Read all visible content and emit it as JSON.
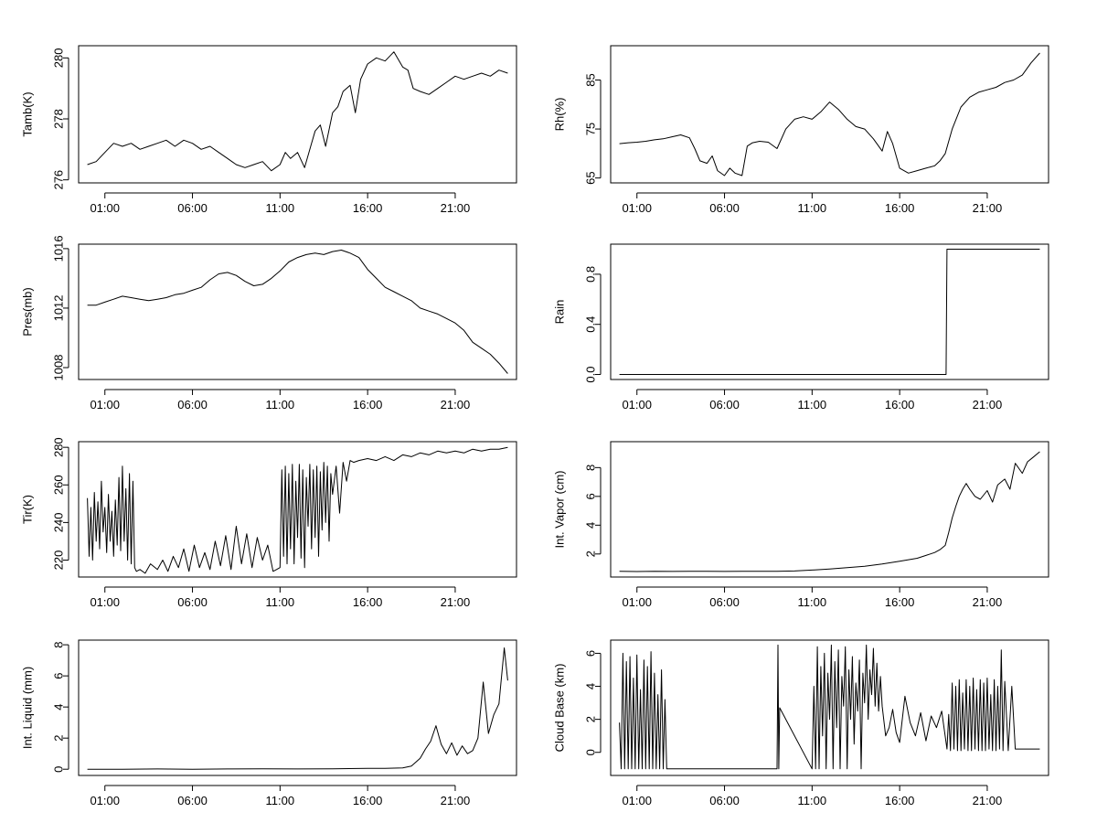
{
  "chart_data": [
    {
      "type": "line",
      "ylabel": "Tamb(K)",
      "xlim": [
        -0.5,
        24.5
      ],
      "ylim": [
        275.9,
        280.4
      ],
      "xticks": [
        1,
        6,
        11,
        16,
        21
      ],
      "xtick_labels": [
        "01:00",
        "06:00",
        "11:00",
        "16:00",
        "21:00"
      ],
      "yticks": [
        276,
        278,
        280
      ],
      "ytick_labels": [
        "276",
        "278",
        "280"
      ],
      "x": [
        0,
        0.5,
        1,
        1.5,
        2,
        2.5,
        3,
        3.5,
        4,
        4.5,
        5,
        5.5,
        6,
        6.5,
        7,
        7.5,
        8,
        8.5,
        9,
        9.5,
        10,
        10.5,
        11,
        11.3,
        11.6,
        12,
        12.4,
        12.8,
        13,
        13.3,
        13.6,
        14,
        14.3,
        14.6,
        15,
        15.3,
        15.6,
        16,
        16.5,
        17,
        17.5,
        18,
        18.3,
        18.6,
        19,
        19.5,
        20,
        20.5,
        21,
        21.5,
        22,
        22.5,
        23,
        23.5,
        24
      ],
      "y": [
        276.5,
        276.6,
        276.9,
        277.2,
        277.1,
        277.2,
        277.0,
        277.1,
        277.2,
        277.3,
        277.1,
        277.3,
        277.2,
        277.0,
        277.1,
        276.9,
        276.7,
        276.5,
        276.4,
        276.5,
        276.6,
        276.3,
        276.5,
        276.9,
        276.7,
        276.9,
        276.4,
        277.2,
        277.6,
        277.8,
        277.1,
        278.2,
        278.4,
        278.9,
        279.1,
        278.2,
        279.3,
        279.8,
        280.0,
        279.9,
        280.2,
        279.7,
        279.6,
        279.0,
        278.9,
        278.8,
        279.0,
        279.2,
        279.4,
        279.3,
        279.4,
        279.5,
        279.4,
        279.6,
        279.5
      ]
    },
    {
      "type": "line",
      "ylabel": "Rh(%)",
      "xlim": [
        -0.5,
        24.5
      ],
      "ylim": [
        64,
        92
      ],
      "xticks": [
        1,
        6,
        11,
        16,
        21
      ],
      "xtick_labels": [
        "01:00",
        "06:00",
        "11:00",
        "16:00",
        "21:00"
      ],
      "yticks": [
        65,
        75,
        85
      ],
      "ytick_labels": [
        "65",
        "75",
        "85"
      ],
      "x": [
        0,
        0.5,
        1,
        1.5,
        2,
        2.5,
        3,
        3.5,
        4,
        4.3,
        4.6,
        5,
        5.3,
        5.6,
        6,
        6.3,
        6.6,
        7,
        7.3,
        7.6,
        8,
        8.5,
        9,
        9.5,
        10,
        10.5,
        11,
        11.5,
        12,
        12.5,
        13,
        13.5,
        14,
        14.5,
        15,
        15.3,
        15.6,
        16,
        16.5,
        17,
        17.5,
        18,
        18.3,
        18.6,
        19,
        19.5,
        20,
        20.5,
        21,
        21.5,
        22,
        22.5,
        23,
        23.5,
        24
      ],
      "y": [
        72,
        72.2,
        72.3,
        72.5,
        72.8,
        73.0,
        73.4,
        73.8,
        73.2,
        71.0,
        68.5,
        68.0,
        69.5,
        66.5,
        65.5,
        67.0,
        66.0,
        65.5,
        71.5,
        72.2,
        72.5,
        72.3,
        71.0,
        75.0,
        77.0,
        77.5,
        77.0,
        78.5,
        80.5,
        79.0,
        77.0,
        75.5,
        75.0,
        73.0,
        70.5,
        74.5,
        72.0,
        67.0,
        66.0,
        66.5,
        67.0,
        67.5,
        68.5,
        70.0,
        75.0,
        79.5,
        81.5,
        82.5,
        83.0,
        83.5,
        84.5,
        85.0,
        86.0,
        88.5,
        90.5
      ]
    },
    {
      "type": "line",
      "ylabel": "Pres(mb)",
      "xlim": [
        -0.5,
        24.5
      ],
      "ylim": [
        1007.2,
        1016.3
      ],
      "xticks": [
        1,
        6,
        11,
        16,
        21
      ],
      "xtick_labels": [
        "01:00",
        "06:00",
        "11:00",
        "16:00",
        "21:00"
      ],
      "yticks": [
        1008,
        1012,
        1016
      ],
      "ytick_labels": [
        "1008",
        "1012",
        "1016"
      ],
      "x": [
        0,
        0.5,
        1,
        1.5,
        2,
        2.5,
        3,
        3.5,
        4,
        4.5,
        5,
        5.5,
        6,
        6.5,
        7,
        7.5,
        8,
        8.5,
        9,
        9.5,
        10,
        10.5,
        11,
        11.5,
        12,
        12.5,
        13,
        13.5,
        14,
        14.5,
        15,
        15.5,
        16,
        16.5,
        17,
        17.5,
        18,
        18.5,
        19,
        19.5,
        20,
        20.5,
        21,
        21.5,
        22,
        22.5,
        23,
        23.5,
        24
      ],
      "y": [
        1012.2,
        1012.2,
        1012.4,
        1012.6,
        1012.8,
        1012.7,
        1012.6,
        1012.5,
        1012.6,
        1012.7,
        1012.9,
        1013.0,
        1013.2,
        1013.4,
        1013.9,
        1014.3,
        1014.4,
        1014.2,
        1013.8,
        1013.5,
        1013.6,
        1014.0,
        1014.5,
        1015.1,
        1015.4,
        1015.6,
        1015.7,
        1015.6,
        1015.8,
        1015.9,
        1015.7,
        1015.4,
        1014.6,
        1014.0,
        1013.4,
        1013.1,
        1012.8,
        1012.5,
        1012.0,
        1011.8,
        1011.6,
        1011.3,
        1011.0,
        1010.5,
        1009.7,
        1009.3,
        1008.9,
        1008.3,
        1007.6
      ]
    },
    {
      "type": "line",
      "ylabel": "Rain",
      "xlim": [
        -0.5,
        24.5
      ],
      "ylim": [
        -0.04,
        1.04
      ],
      "xticks": [
        1,
        6,
        11,
        16,
        21
      ],
      "xtick_labels": [
        "01:00",
        "06:00",
        "11:00",
        "16:00",
        "21:00"
      ],
      "yticks": [
        0.0,
        0.4,
        0.8
      ],
      "ytick_labels": [
        "0.0",
        "0.4",
        "0.8"
      ],
      "x": [
        0,
        18.65,
        18.7,
        24
      ],
      "y": [
        0,
        0,
        1,
        1
      ]
    },
    {
      "type": "line",
      "ylabel": "Tir(K)",
      "xlim": [
        -0.5,
        24.5
      ],
      "ylim": [
        211,
        283
      ],
      "xticks": [
        1,
        6,
        11,
        16,
        21
      ],
      "xtick_labels": [
        "01:00",
        "06:00",
        "11:00",
        "16:00",
        "21:00"
      ],
      "yticks": [
        220,
        240,
        260,
        280
      ],
      "ytick_labels": [
        "220",
        "240",
        "260",
        "280"
      ],
      "x": [
        0,
        0.1,
        0.2,
        0.3,
        0.4,
        0.5,
        0.6,
        0.7,
        0.8,
        0.9,
        1.0,
        1.1,
        1.2,
        1.3,
        1.4,
        1.5,
        1.6,
        1.7,
        1.8,
        1.9,
        2.0,
        2.1,
        2.2,
        2.3,
        2.4,
        2.5,
        2.6,
        2.7,
        2.8,
        3.0,
        3.3,
        3.6,
        4.0,
        4.3,
        4.6,
        4.9,
        5.2,
        5.5,
        5.8,
        6.1,
        6.4,
        6.7,
        7.0,
        7.3,
        7.6,
        7.9,
        8.2,
        8.5,
        8.8,
        9.1,
        9.4,
        9.7,
        10.0,
        10.3,
        10.6,
        10.8,
        11.0,
        11.1,
        11.2,
        11.3,
        11.4,
        11.5,
        11.6,
        11.7,
        11.8,
        11.9,
        12.0,
        12.1,
        12.2,
        12.3,
        12.4,
        12.5,
        12.6,
        12.7,
        12.8,
        12.9,
        13.0,
        13.1,
        13.2,
        13.3,
        13.4,
        13.5,
        13.6,
        13.7,
        13.8,
        13.9,
        14.0,
        14.2,
        14.4,
        14.6,
        14.8,
        15.0,
        15.2,
        15.5,
        16.0,
        16.5,
        17.0,
        17.5,
        18.0,
        18.5,
        19.0,
        19.5,
        20.0,
        20.5,
        21.0,
        21.5,
        22.0,
        22.5,
        23.0,
        23.5,
        24.0
      ],
      "y": [
        253,
        222,
        248,
        220,
        256,
        230,
        251,
        226,
        262,
        235,
        248,
        224,
        255,
        230,
        246,
        222,
        252,
        228,
        264,
        225,
        270,
        230,
        258,
        220,
        266,
        218,
        262,
        216,
        214,
        215,
        213,
        218,
        215,
        220,
        214,
        222,
        216,
        226,
        214,
        228,
        216,
        224,
        215,
        230,
        217,
        233,
        215,
        238,
        218,
        234,
        216,
        232,
        220,
        228,
        214,
        215,
        216,
        268,
        222,
        270,
        218,
        266,
        226,
        271,
        218,
        262,
        232,
        271,
        221,
        268,
        216,
        264,
        238,
        271,
        226,
        268,
        232,
        270,
        222,
        267,
        236,
        272,
        240,
        270,
        230,
        266,
        255,
        270,
        245,
        272,
        262,
        273,
        272,
        273,
        274,
        273,
        275,
        273,
        276,
        275,
        277,
        276,
        278,
        277,
        278,
        277,
        279,
        278,
        279,
        279,
        280
      ]
    },
    {
      "type": "line",
      "ylabel": "Int. Vapor (cm)",
      "xlim": [
        -0.5,
        24.5
      ],
      "ylim": [
        0.4,
        9.8
      ],
      "xticks": [
        1,
        6,
        11,
        16,
        21
      ],
      "xtick_labels": [
        "01:00",
        "06:00",
        "11:00",
        "16:00",
        "21:00"
      ],
      "yticks": [
        2,
        4,
        6,
        8
      ],
      "ytick_labels": [
        "2",
        "4",
        "6",
        "8"
      ],
      "x": [
        0,
        1,
        2,
        3,
        4,
        5,
        6,
        7,
        8,
        9,
        10,
        11,
        12,
        13,
        14,
        15,
        16,
        17,
        17.5,
        18,
        18.3,
        18.6,
        18.8,
        19.0,
        19.2,
        19.4,
        19.6,
        19.8,
        20.0,
        20.3,
        20.6,
        21.0,
        21.3,
        21.6,
        22.0,
        22.3,
        22.6,
        23.0,
        23.3,
        23.6,
        24.0
      ],
      "y": [
        0.8,
        0.78,
        0.8,
        0.79,
        0.8,
        0.8,
        0.79,
        0.8,
        0.8,
        0.8,
        0.82,
        0.88,
        0.95,
        1.05,
        1.15,
        1.3,
        1.5,
        1.7,
        1.9,
        2.1,
        2.3,
        2.6,
        3.5,
        4.5,
        5.3,
        6.0,
        6.5,
        6.9,
        6.5,
        6.0,
        5.8,
        6.4,
        5.6,
        6.8,
        7.2,
        6.5,
        8.3,
        7.6,
        8.4,
        8.7,
        9.1
      ]
    },
    {
      "type": "line",
      "ylabel": "Int. Liquid (mm)",
      "xlim": [
        -0.5,
        24.5
      ],
      "ylim": [
        -0.4,
        8.3
      ],
      "xticks": [
        1,
        6,
        11,
        16,
        21
      ],
      "xtick_labels": [
        "01:00",
        "06:00",
        "11:00",
        "16:00",
        "21:00"
      ],
      "yticks": [
        0,
        2,
        4,
        6,
        8
      ],
      "ytick_labels": [
        "0",
        "2",
        "4",
        "6",
        "8"
      ],
      "x": [
        0,
        2,
        4,
        6,
        8,
        10,
        12,
        14,
        16,
        17,
        18,
        18.5,
        19,
        19.3,
        19.6,
        19.9,
        20.2,
        20.5,
        20.8,
        21.1,
        21.4,
        21.7,
        22.0,
        22.3,
        22.6,
        22.9,
        23.2,
        23.5,
        23.8,
        24.0
      ],
      "y": [
        0,
        0,
        0.02,
        0,
        0.02,
        0.03,
        0.02,
        0.03,
        0.05,
        0.05,
        0.08,
        0.2,
        0.7,
        1.3,
        1.8,
        2.8,
        1.6,
        1.0,
        1.7,
        0.9,
        1.5,
        1.0,
        1.2,
        2.0,
        5.6,
        2.3,
        3.5,
        4.2,
        7.8,
        5.7
      ]
    },
    {
      "type": "line",
      "ylabel": "Cloud Base (km)",
      "xlim": [
        -0.5,
        24.5
      ],
      "ylim": [
        -1.4,
        6.8
      ],
      "xticks": [
        1,
        6,
        11,
        16,
        21
      ],
      "xtick_labels": [
        "01:00",
        "06:00",
        "11:00",
        "16:00",
        "21:00"
      ],
      "yticks": [
        0,
        2,
        4,
        6
      ],
      "ytick_labels": [
        "0",
        "2",
        "4",
        "6"
      ],
      "x": [
        0,
        0.1,
        0.2,
        0.3,
        0.4,
        0.5,
        0.6,
        0.7,
        0.8,
        0.9,
        1.0,
        1.1,
        1.2,
        1.3,
        1.4,
        1.5,
        1.6,
        1.7,
        1.8,
        1.9,
        2.0,
        2.1,
        2.2,
        2.3,
        2.4,
        2.5,
        2.6,
        2.7,
        9.0,
        9.05,
        9.1,
        9.15,
        11.0,
        11.1,
        11.2,
        11.3,
        11.4,
        11.5,
        11.6,
        11.7,
        11.8,
        11.9,
        12.0,
        12.1,
        12.2,
        12.3,
        12.4,
        12.5,
        12.6,
        12.7,
        12.8,
        12.9,
        13.0,
        13.1,
        13.2,
        13.3,
        13.4,
        13.5,
        13.6,
        13.7,
        13.8,
        13.9,
        14.0,
        14.1,
        14.2,
        14.3,
        14.4,
        14.5,
        14.6,
        14.7,
        14.8,
        14.9,
        15.0,
        15.2,
        15.4,
        15.6,
        15.8,
        16.0,
        16.3,
        16.6,
        16.9,
        17.2,
        17.5,
        17.8,
        18.1,
        18.4,
        18.7,
        18.8,
        18.9,
        19.0,
        19.1,
        19.2,
        19.3,
        19.4,
        19.5,
        19.6,
        19.7,
        19.8,
        19.9,
        20.0,
        20.1,
        20.2,
        20.3,
        20.4,
        20.5,
        20.6,
        20.7,
        20.8,
        20.9,
        21.0,
        21.1,
        21.2,
        21.3,
        21.4,
        21.5,
        21.6,
        21.7,
        21.8,
        21.9,
        22.0,
        22.2,
        22.4,
        22.6,
        23.0,
        23.5,
        24.0
      ],
      "y": [
        1.8,
        -1,
        6.0,
        -1,
        5.5,
        -1,
        5.8,
        -1,
        4.5,
        -1,
        5.9,
        -1,
        3.8,
        -1,
        5.6,
        -1,
        5.2,
        -1,
        6.1,
        -1,
        4.8,
        -1,
        3.5,
        -1,
        5.0,
        -1,
        3.2,
        -1,
        -1,
        6.5,
        -1,
        2.7,
        -1,
        4.0,
        -1,
        6.4,
        -1,
        5.2,
        1.0,
        6.0,
        -1,
        4.8,
        2.0,
        6.5,
        -1,
        5.5,
        1.5,
        6.2,
        -1,
        4.6,
        2.8,
        6.4,
        -1,
        5.0,
        2.0,
        5.8,
        0.5,
        4.2,
        2.5,
        5.6,
        -1,
        4.8,
        3.0,
        6.5,
        2.0,
        5.0,
        3.5,
        6.3,
        2.8,
        5.4,
        2.5,
        4.6,
        2.8,
        1.0,
        1.5,
        2.6,
        1.2,
        0.6,
        3.4,
        1.8,
        1.0,
        2.4,
        0.7,
        2.2,
        1.5,
        2.5,
        0.2,
        2.3,
        0.1,
        4.2,
        0.2,
        4.0,
        0.1,
        4.4,
        0.1,
        3.6,
        0.2,
        4.4,
        0.1,
        4.0,
        0.1,
        4.5,
        0.2,
        3.8,
        0.1,
        4.4,
        0.1,
        4.2,
        0.1,
        4.5,
        0.2,
        3.5,
        0.1,
        4.4,
        0.1,
        4.0,
        0.2,
        6.2,
        0.1,
        4.3,
        0.1,
        4.0,
        0.2,
        0.2,
        0.2,
        0.2
      ]
    }
  ]
}
